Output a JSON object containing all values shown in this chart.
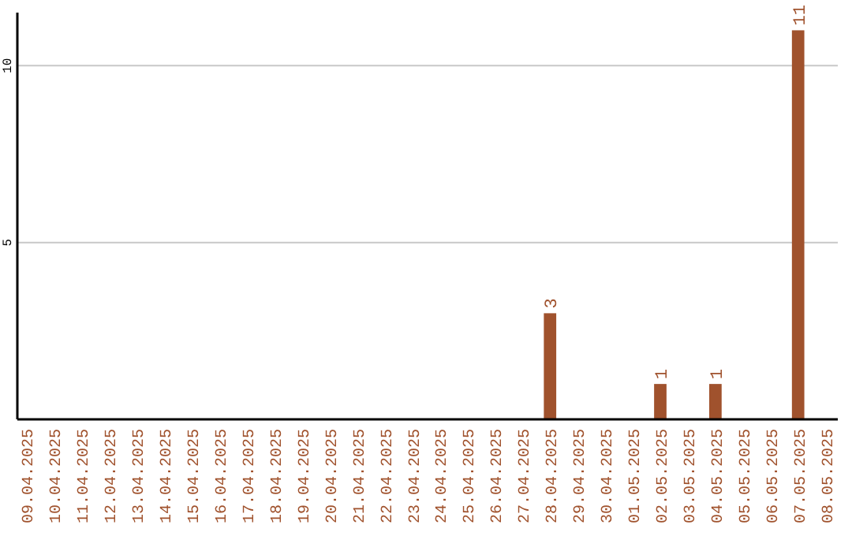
{
  "chart_data": {
    "type": "bar",
    "categories": [
      "09.04.2025",
      "10.04.2025",
      "11.04.2025",
      "12.04.2025",
      "13.04.2025",
      "14.04.2025",
      "15.04.2025",
      "16.04.2025",
      "17.04.2025",
      "18.04.2025",
      "19.04.2025",
      "20.04.2025",
      "21.04.2025",
      "22.04.2025",
      "23.04.2025",
      "24.04.2025",
      "25.04.2025",
      "26.04.2025",
      "27.04.2025",
      "28.04.2025",
      "29.04.2025",
      "30.04.2025",
      "01.05.2025",
      "02.05.2025",
      "03.05.2025",
      "04.05.2025",
      "05.05.2025",
      "06.05.2025",
      "07.05.2025",
      "08.05.2025"
    ],
    "values": [
      0,
      0,
      0,
      0,
      0,
      0,
      0,
      0,
      0,
      0,
      0,
      0,
      0,
      0,
      0,
      0,
      0,
      0,
      0,
      3,
      0,
      0,
      0,
      1,
      0,
      1,
      0,
      0,
      11,
      0
    ],
    "value_labels": [
      null,
      null,
      null,
      null,
      null,
      null,
      null,
      null,
      null,
      null,
      null,
      null,
      null,
      null,
      null,
      null,
      null,
      null,
      null,
      "3",
      null,
      null,
      null,
      "1",
      null,
      "1",
      null,
      null,
      "11",
      null
    ],
    "color": "#a0522d",
    "ylim": [
      0,
      11.5
    ],
    "yticks": [
      5,
      10
    ],
    "grid": "y"
  }
}
